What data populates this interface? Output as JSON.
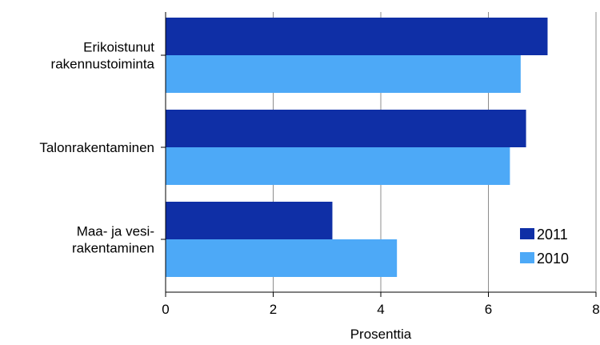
{
  "chart_data": {
    "type": "bar",
    "orientation": "horizontal",
    "categories": [
      [
        "Erikoistunut",
        "rakennustoiminta"
      ],
      [
        "Talonrakentaminen"
      ],
      [
        "Maa- ja vesi-",
        "rakentaminen"
      ]
    ],
    "series": [
      {
        "name": "2011",
        "color": "#0f2fa6",
        "values": [
          7.1,
          6.7,
          3.1
        ]
      },
      {
        "name": "2010",
        "color": "#4da9f7",
        "values": [
          6.6,
          6.4,
          4.3
        ]
      }
    ],
    "xlabel": "Prosenttia",
    "xlim": [
      0,
      8
    ],
    "xticks": [
      0,
      2,
      4,
      6,
      8
    ],
    "grid": true,
    "legend_position": "bottom-right"
  }
}
